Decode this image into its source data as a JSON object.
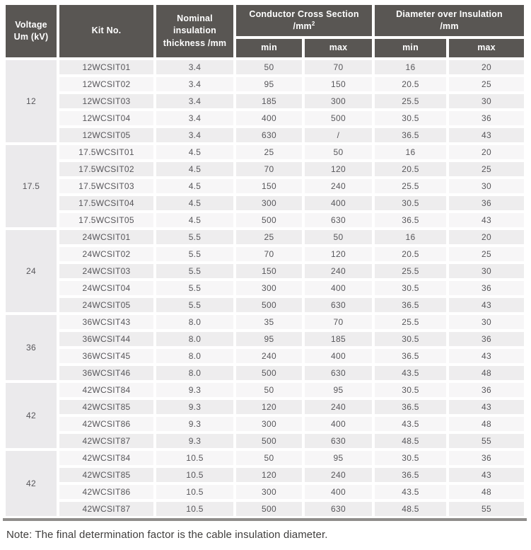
{
  "table": {
    "columns": {
      "voltage_line1": "Voltage",
      "voltage_line2": "Um (kV)",
      "kit": "Kit No.",
      "thickness_line1": "Nominal insulation",
      "thickness_line2": "thickness /mm",
      "ccs_line1": "Conductor Cross Section",
      "ccs_unit": "/mm",
      "ccs_unit_sup": "2",
      "doi_line1": "Diameter over Insulation",
      "doi_line2": "/mm",
      "min": "min",
      "max": "max"
    },
    "groups": [
      {
        "voltage": "12",
        "rows": [
          {
            "kit": "12WCSIT01",
            "thickness": "3.4",
            "ccs_min": "50",
            "ccs_max": "70",
            "doi_min": "16",
            "doi_max": "20"
          },
          {
            "kit": "12WCSIT02",
            "thickness": "3.4",
            "ccs_min": "95",
            "ccs_max": "150",
            "doi_min": "20.5",
            "doi_max": "25"
          },
          {
            "kit": "12WCSIT03",
            "thickness": "3.4",
            "ccs_min": "185",
            "ccs_max": "300",
            "doi_min": "25.5",
            "doi_max": "30"
          },
          {
            "kit": "12WCSIT04",
            "thickness": "3.4",
            "ccs_min": "400",
            "ccs_max": "500",
            "doi_min": "30.5",
            "doi_max": "36"
          },
          {
            "kit": "12WCSIT05",
            "thickness": "3.4",
            "ccs_min": "630",
            "ccs_max": "/",
            "doi_min": "36.5",
            "doi_max": "43"
          }
        ]
      },
      {
        "voltage": "17.5",
        "rows": [
          {
            "kit": "17.5WCSIT01",
            "thickness": "4.5",
            "ccs_min": "25",
            "ccs_max": "50",
            "doi_min": "16",
            "doi_max": "20"
          },
          {
            "kit": "17.5WCSIT02",
            "thickness": "4.5",
            "ccs_min": "70",
            "ccs_max": "120",
            "doi_min": "20.5",
            "doi_max": "25"
          },
          {
            "kit": "17.5WCSIT03",
            "thickness": "4.5",
            "ccs_min": "150",
            "ccs_max": "240",
            "doi_min": "25.5",
            "doi_max": "30"
          },
          {
            "kit": "17.5WCSIT04",
            "thickness": "4.5",
            "ccs_min": "300",
            "ccs_max": "400",
            "doi_min": "30.5",
            "doi_max": "36"
          },
          {
            "kit": "17.5WCSIT05",
            "thickness": "4.5",
            "ccs_min": "500",
            "ccs_max": "630",
            "doi_min": "36.5",
            "doi_max": "43"
          }
        ]
      },
      {
        "voltage": "24",
        "rows": [
          {
            "kit": "24WCSIT01",
            "thickness": "5.5",
            "ccs_min": "25",
            "ccs_max": "50",
            "doi_min": "16",
            "doi_max": "20"
          },
          {
            "kit": "24WCSIT02",
            "thickness": "5.5",
            "ccs_min": "70",
            "ccs_max": "120",
            "doi_min": "20.5",
            "doi_max": "25"
          },
          {
            "kit": "24WCSIT03",
            "thickness": "5.5",
            "ccs_min": "150",
            "ccs_max": "240",
            "doi_min": "25.5",
            "doi_max": "30"
          },
          {
            "kit": "24WCSIT04",
            "thickness": "5.5",
            "ccs_min": "300",
            "ccs_max": "400",
            "doi_min": "30.5",
            "doi_max": "36"
          },
          {
            "kit": "24WCSIT05",
            "thickness": "5.5",
            "ccs_min": "500",
            "ccs_max": "630",
            "doi_min": "36.5",
            "doi_max": "43"
          }
        ]
      },
      {
        "voltage": "36",
        "rows": [
          {
            "kit": "36WCSIT43",
            "thickness": "8.0",
            "ccs_min": "35",
            "ccs_max": "70",
            "doi_min": "25.5",
            "doi_max": "30"
          },
          {
            "kit": "36WCSIT44",
            "thickness": "8.0",
            "ccs_min": "95",
            "ccs_max": "185",
            "doi_min": "30.5",
            "doi_max": "36"
          },
          {
            "kit": "36WCSIT45",
            "thickness": "8.0",
            "ccs_min": "240",
            "ccs_max": "400",
            "doi_min": "36.5",
            "doi_max": "43"
          },
          {
            "kit": "36WCSIT46",
            "thickness": "8.0",
            "ccs_min": "500",
            "ccs_max": "630",
            "doi_min": "43.5",
            "doi_max": "48"
          }
        ]
      },
      {
        "voltage": "42",
        "rows": [
          {
            "kit": "42WCSIT84",
            "thickness": "9.3",
            "ccs_min": "50",
            "ccs_max": "95",
            "doi_min": "30.5",
            "doi_max": "36"
          },
          {
            "kit": "42WCSIT85",
            "thickness": "9.3",
            "ccs_min": "120",
            "ccs_max": "240",
            "doi_min": "36.5",
            "doi_max": "43"
          },
          {
            "kit": "42WCSIT86",
            "thickness": "9.3",
            "ccs_min": "300",
            "ccs_max": "400",
            "doi_min": "43.5",
            "doi_max": "48"
          },
          {
            "kit": "42WCSIT87",
            "thickness": "9.3",
            "ccs_min": "500",
            "ccs_max": "630",
            "doi_min": "48.5",
            "doi_max": "55"
          }
        ]
      },
      {
        "voltage": "42",
        "rows": [
          {
            "kit": "42WCSIT84",
            "thickness": "10.5",
            "ccs_min": "50",
            "ccs_max": "95",
            "doi_min": "30.5",
            "doi_max": "36"
          },
          {
            "kit": "42WCSIT85",
            "thickness": "10.5",
            "ccs_min": "120",
            "ccs_max": "240",
            "doi_min": "36.5",
            "doi_max": "43"
          },
          {
            "kit": "42WCSIT86",
            "thickness": "10.5",
            "ccs_min": "300",
            "ccs_max": "400",
            "doi_min": "43.5",
            "doi_max": "48"
          },
          {
            "kit": "42WCSIT87",
            "thickness": "10.5",
            "ccs_min": "500",
            "ccs_max": "630",
            "doi_min": "48.5",
            "doi_max": "55"
          }
        ]
      }
    ]
  },
  "page": {
    "note": "Note: The final determination factor is the cable insulation diameter."
  },
  "colors": {
    "header_bg": "#595653",
    "header_text": "#ffffff",
    "row_gray": "#eeedee",
    "row_light": "#f7f6f7",
    "voltage_cell_bg": "#ebeaec",
    "body_text": "#57565a",
    "bottom_rule": "#8f8d8b",
    "note_text": "#403e3d"
  }
}
